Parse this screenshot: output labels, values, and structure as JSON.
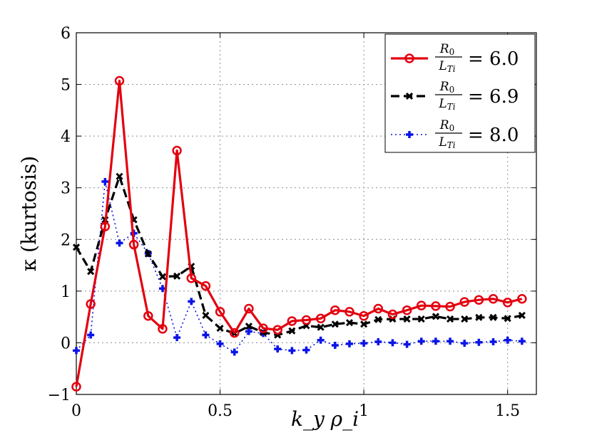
{
  "chart_data": {
    "type": "line",
    "title": "",
    "xlabel": "k_y ρ_i",
    "ylabel": "κ (kurtosis)",
    "xlim": [
      0,
      1.6
    ],
    "ylim": [
      -1,
      6
    ],
    "xticks": [
      0,
      0.5,
      1,
      1.5
    ],
    "yticks": [
      -1,
      0,
      1,
      2,
      3,
      4,
      5,
      6
    ],
    "xtick_labels": [
      "0",
      "0.5",
      "1",
      "1.5"
    ],
    "ytick_labels": [
      "−1",
      "0",
      "1",
      "2",
      "3",
      "4",
      "5",
      "6"
    ],
    "grid": true,
    "legend_position": "top-right",
    "x": [
      0,
      0.05,
      0.1,
      0.15,
      0.2,
      0.25,
      0.3,
      0.35,
      0.4,
      0.45,
      0.5,
      0.55,
      0.6,
      0.65,
      0.7,
      0.75,
      0.8,
      0.85,
      0.9,
      0.95,
      1.0,
      1.05,
      1.1,
      1.15,
      1.2,
      1.25,
      1.3,
      1.35,
      1.4,
      1.45,
      1.5,
      1.55
    ],
    "series": [
      {
        "name": "R0/LTi = 6.0",
        "legend_value": "= 6.0",
        "color": "#e3000f",
        "line_style": "solid",
        "marker": "circle",
        "values": [
          -0.85,
          0.75,
          2.25,
          5.07,
          1.9,
          0.52,
          0.27,
          3.72,
          1.25,
          1.1,
          0.6,
          0.19,
          0.66,
          0.28,
          0.25,
          0.42,
          0.44,
          0.47,
          0.63,
          0.6,
          0.52,
          0.66,
          0.55,
          0.63,
          0.72,
          0.71,
          0.7,
          0.79,
          0.83,
          0.85,
          0.78,
          0.85
        ]
      },
      {
        "name": "R0/LTi = 6.9",
        "legend_value": "= 6.9",
        "color": "#000000",
        "line_style": "dashed",
        "marker": "x",
        "values": [
          1.85,
          1.38,
          2.38,
          3.22,
          2.38,
          1.72,
          1.28,
          1.29,
          1.48,
          0.53,
          0.28,
          0.18,
          0.32,
          0.2,
          0.15,
          0.23,
          0.33,
          0.3,
          0.36,
          0.39,
          0.36,
          0.45,
          0.46,
          0.46,
          0.46,
          0.51,
          0.46,
          0.46,
          0.49,
          0.49,
          0.47,
          0.53
        ]
      },
      {
        "name": "R0/LTi = 8.0",
        "legend_value": "= 8.0",
        "color": "#0a14e6",
        "line_style": "dotted",
        "marker": "plus",
        "values": [
          -0.15,
          0.15,
          3.12,
          1.93,
          2.12,
          1.73,
          1.05,
          0.1,
          0.8,
          0.15,
          -0.02,
          -0.18,
          0.22,
          0.18,
          -0.12,
          -0.15,
          -0.14,
          0.05,
          -0.05,
          -0.02,
          -0.01,
          0.02,
          0.0,
          -0.03,
          0.03,
          0.03,
          0.03,
          -0.01,
          0.01,
          0.02,
          0.05,
          0.03
        ]
      }
    ],
    "legend_fraction": {
      "numerator": "R",
      "numerator_sub": "0",
      "denominator": "L",
      "denominator_sub": "Ti"
    }
  }
}
